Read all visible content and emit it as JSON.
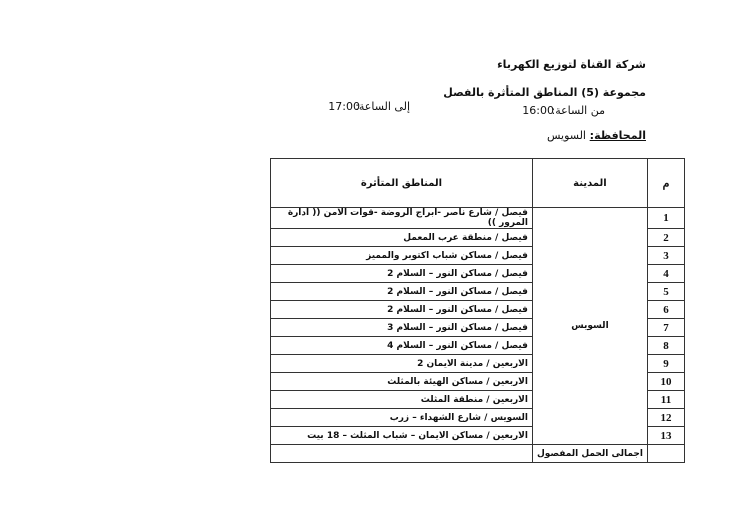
{
  "header": {
    "company": "شركة القناة لتوزيع الكهرباء",
    "group": "مجموعة (5) المناطق المتأثرة بالفصل",
    "from_label": "من الساعة:",
    "from_time": "16:00",
    "to_label": "إلى الساعة:",
    "to_time": "17:00",
    "governorate_label": "المحافظة:",
    "governorate": "السويس"
  },
  "table": {
    "headers": [
      "م",
      "المدينة",
      "المناطق المتأثرة"
    ],
    "city": "السويس",
    "rows": [
      {
        "number": 1,
        "area": "فيصل / شارع ناصر -ابراج الروضة -قوات الامن (( ادارة المرور ))"
      },
      {
        "number": 2,
        "area": "فيصل / منطقة عرب المعمل"
      },
      {
        "number": 3,
        "area": "فيصل / مساكن شباب اكتوبر والمميز"
      },
      {
        "number": 4,
        "area": "فيصل / مساكن النور – السلام 2"
      },
      {
        "number": 5,
        "area": "فيصل / مساكن النور – السلام 2"
      },
      {
        "number": 6,
        "area": "فيصل / مساكن النور – السلام 2"
      },
      {
        "number": 7,
        "area": "فيصل / مساكن النور – السلام 3"
      },
      {
        "number": 8,
        "area": "فيصل / مساكن النور – السلام 4"
      },
      {
        "number": 9,
        "area": "الاربعين / مدينة الايمان 2"
      },
      {
        "number": 10,
        "area": "الاربعين / مساكن الهيئة بالمثلث"
      },
      {
        "number": 11,
        "area": "الاربعين / منطقة المثلث"
      },
      {
        "number": 12,
        "area": "السويس / شارع الشهداء – زرب"
      },
      {
        "number": 13,
        "area": "الاربعين / مساكن الايمان – شباب المثلث – 18 بيت"
      }
    ],
    "total_label": "اجمالى الحمل المفصول"
  }
}
